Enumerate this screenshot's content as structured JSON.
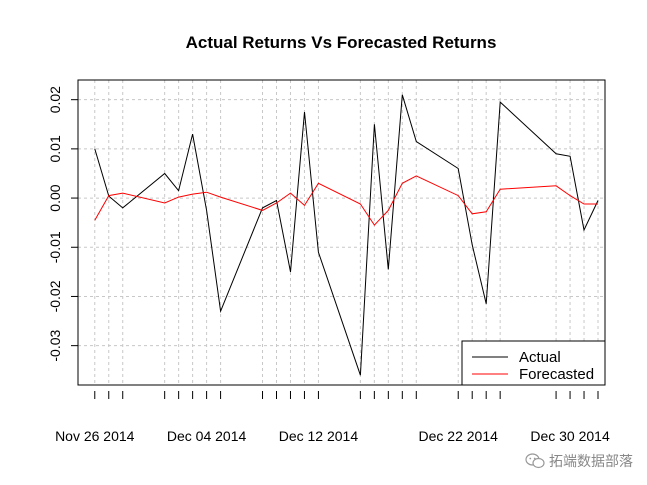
{
  "chart_data": {
    "type": "line",
    "title": "Actual Returns Vs Forecasted Returns",
    "xlabel": "",
    "ylabel": "",
    "ylim": [
      -0.038,
      0.024
    ],
    "y_ticks": [
      -0.03,
      -0.02,
      -0.01,
      0.0,
      0.01,
      0.02
    ],
    "y_tick_labels": [
      "-0.03",
      "-0.02",
      "-0.01",
      "0.00",
      "0.01",
      "0.02"
    ],
    "x_tick_labels": [
      {
        "day": 0,
        "label": "Nov 26 2014"
      },
      {
        "day": 8,
        "label": "Dec 04 2014"
      },
      {
        "day": 16,
        "label": "Dec 12 2014"
      },
      {
        "day": 26,
        "label": "Dec 22 2014"
      },
      {
        "day": 34,
        "label": "Dec 30 2014"
      }
    ],
    "xlim": [
      -1.2,
      36.5
    ],
    "days": [
      0,
      1,
      2,
      5,
      6,
      7,
      8,
      9,
      12,
      13,
      14,
      15,
      16,
      19,
      20,
      21,
      22,
      23,
      26,
      27,
      28,
      29,
      33,
      34,
      35,
      36
    ],
    "series": [
      {
        "name": "Actual",
        "color": "#000000",
        "values": [
          0.01,
          0.0004,
          -0.002,
          0.005,
          0.0015,
          0.013,
          -0.0025,
          -0.023,
          -0.002,
          -0.0005,
          -0.015,
          0.0175,
          -0.011,
          -0.036,
          0.015,
          -0.0145,
          0.021,
          0.0115,
          0.006,
          -0.0095,
          -0.0215,
          0.0195,
          0.009,
          0.0085,
          -0.0065,
          -0.0005
        ]
      },
      {
        "name": "Forecasted",
        "color": "#ff0000",
        "values": [
          -0.0045,
          0.0005,
          0.001,
          -0.001,
          0.0002,
          0.0008,
          0.0012,
          0.0002,
          -0.0025,
          -0.001,
          0.001,
          -0.0015,
          0.003,
          -0.0012,
          -0.0055,
          -0.0025,
          0.003,
          0.0045,
          0.0005,
          -0.0032,
          -0.0028,
          0.0018,
          0.0025,
          0.0005,
          -0.0012,
          -0.0012
        ]
      }
    ],
    "grid": true,
    "legend": {
      "position": "bottom-right",
      "entries": [
        "Actual",
        "Forecasted"
      ]
    }
  },
  "watermark": {
    "text": "拓端数据部落",
    "icon": "wechat-icon"
  }
}
